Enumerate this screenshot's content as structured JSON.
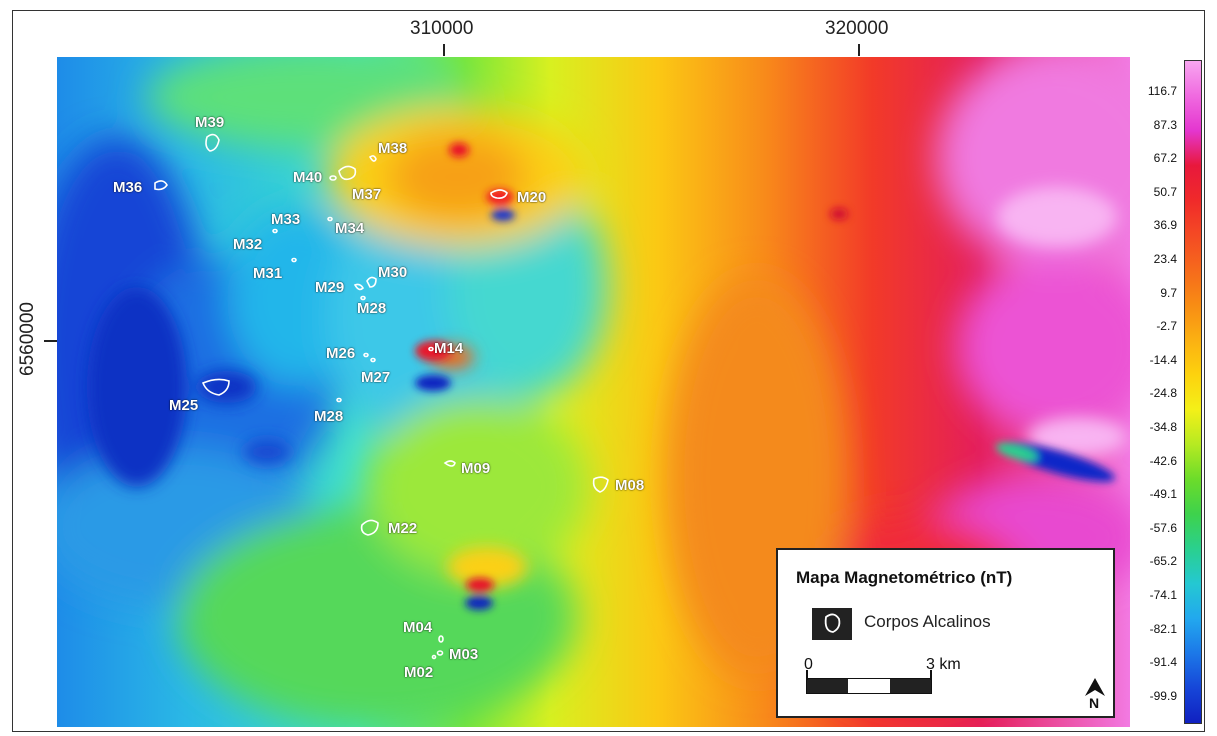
{
  "axes": {
    "x_ticks": [
      "310000",
      "320000"
    ],
    "y_ticks": [
      "6560000"
    ]
  },
  "bodies": [
    {
      "id": "m39",
      "label": "M39"
    },
    {
      "id": "m36",
      "label": "M36"
    },
    {
      "id": "m40",
      "label": "M40"
    },
    {
      "id": "m38",
      "label": "M38"
    },
    {
      "id": "m37",
      "label": "M37"
    },
    {
      "id": "m20",
      "label": "M20"
    },
    {
      "id": "m33",
      "label": "M33"
    },
    {
      "id": "m34",
      "label": "M34"
    },
    {
      "id": "m32",
      "label": "M32"
    },
    {
      "id": "m31",
      "label": "M31"
    },
    {
      "id": "m29",
      "label": "M29"
    },
    {
      "id": "m30",
      "label": "M30"
    },
    {
      "id": "m28a",
      "label": "M28"
    },
    {
      "id": "m26",
      "label": "M26"
    },
    {
      "id": "m14",
      "label": "M14"
    },
    {
      "id": "m27",
      "label": "M27"
    },
    {
      "id": "m25",
      "label": "M25"
    },
    {
      "id": "m28b",
      "label": "M28"
    },
    {
      "id": "m09",
      "label": "M09"
    },
    {
      "id": "m08",
      "label": "M08"
    },
    {
      "id": "m22",
      "label": "M22"
    },
    {
      "id": "m04",
      "label": "M04"
    },
    {
      "id": "m03",
      "label": "M03"
    },
    {
      "id": "m02",
      "label": "M02"
    }
  ],
  "colorbar": {
    "labels": [
      "116.7",
      "87.3",
      "67.2",
      "50.7",
      "36.9",
      "23.4",
      "9.7",
      "-2.7",
      "-14.4",
      "-24.8",
      "-34.8",
      "-42.6",
      "-49.1",
      "-57.6",
      "-65.2",
      "-74.1",
      "-82.1",
      "-91.4",
      "-99.9"
    ],
    "colors": [
      "#f8a6f0",
      "#f06ae0",
      "#e436cf",
      "#e8183c",
      "#f02a2a",
      "#f44a24",
      "#f66a1c",
      "#f88c14",
      "#fbb012",
      "#fdd20e",
      "#f4f018",
      "#b6ea22",
      "#6cdc2a",
      "#3ed24c",
      "#2ad08e",
      "#24c8d2",
      "#22a8ee",
      "#1c78e8",
      "#1646d8",
      "#1020c0"
    ]
  },
  "legend": {
    "title": "Mapa Magnetométrico (nT)",
    "item_label": "Corpos Alcalinos",
    "scale_start": "0",
    "scale_end": "3 km",
    "north": "N"
  }
}
